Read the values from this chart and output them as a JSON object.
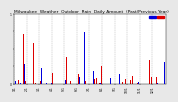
{
  "title": "Milwaukee  Weather  Outdoor  Rain  Daily Amount  (Past/Previous Year)",
  "background_color": "#e8e8e8",
  "plot_bg_color": "#ffffff",
  "num_points": 366,
  "blue_color": "#0000dd",
  "red_color": "#dd0000",
  "grid_color": "#888888",
  "ylim": [
    0,
    1.0
  ],
  "legend_blue": "---- ",
  "legend_red": "----",
  "title_fontsize": 3.2,
  "tick_fontsize": 2.2,
  "blue_seed": 42,
  "red_seed": 99
}
